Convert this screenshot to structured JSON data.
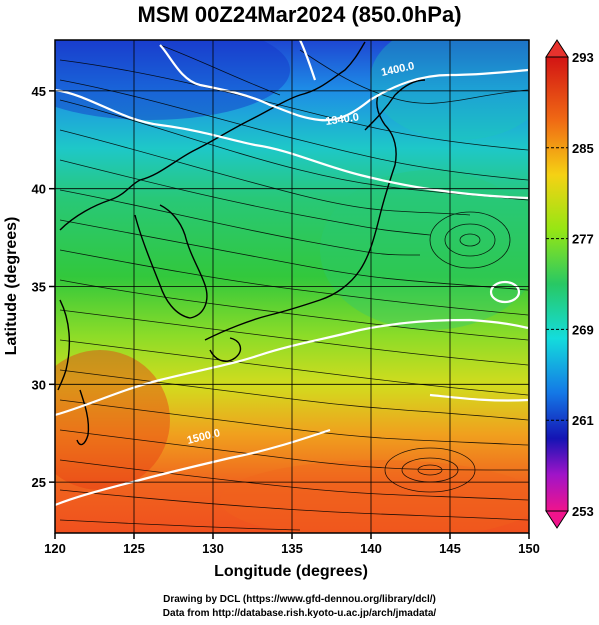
{
  "title": "MSM 00Z24Mar2024 (850.0hPa)",
  "map": {
    "lon_range": [
      120,
      150
    ],
    "lat_range": [
      22.4,
      47.6
    ],
    "x_label": "Longitude (degrees)",
    "y_label": "Latitude  (degrees)",
    "x_ticks": [
      "120",
      "125",
      "130",
      "135",
      "140",
      "145",
      "150"
    ],
    "y_ticks": [
      "25",
      "30",
      "35",
      "40",
      "45"
    ],
    "grid": true,
    "field": "850hPa temperature (color) with wind streamlines",
    "contour_labels": [
      "1400.0",
      "1340.0",
      "1500.0"
    ]
  },
  "colorbar": {
    "labels": [
      "293",
      "285",
      "277",
      "269",
      "261",
      "253"
    ],
    "colors": [
      "#d21414",
      "#f06a14",
      "#f5d214",
      "#96e614",
      "#28c864",
      "#14dcdc",
      "#1478e6",
      "#1414b4",
      "#a014c8",
      "#f0148c"
    ]
  },
  "credits": {
    "line1": "Drawing by DCL (https://www.gfd-dennou.org/library/dcl/)",
    "line2": "Data from http://database.rish.kyoto-u.ac.jp/arch/jmadata/"
  }
}
